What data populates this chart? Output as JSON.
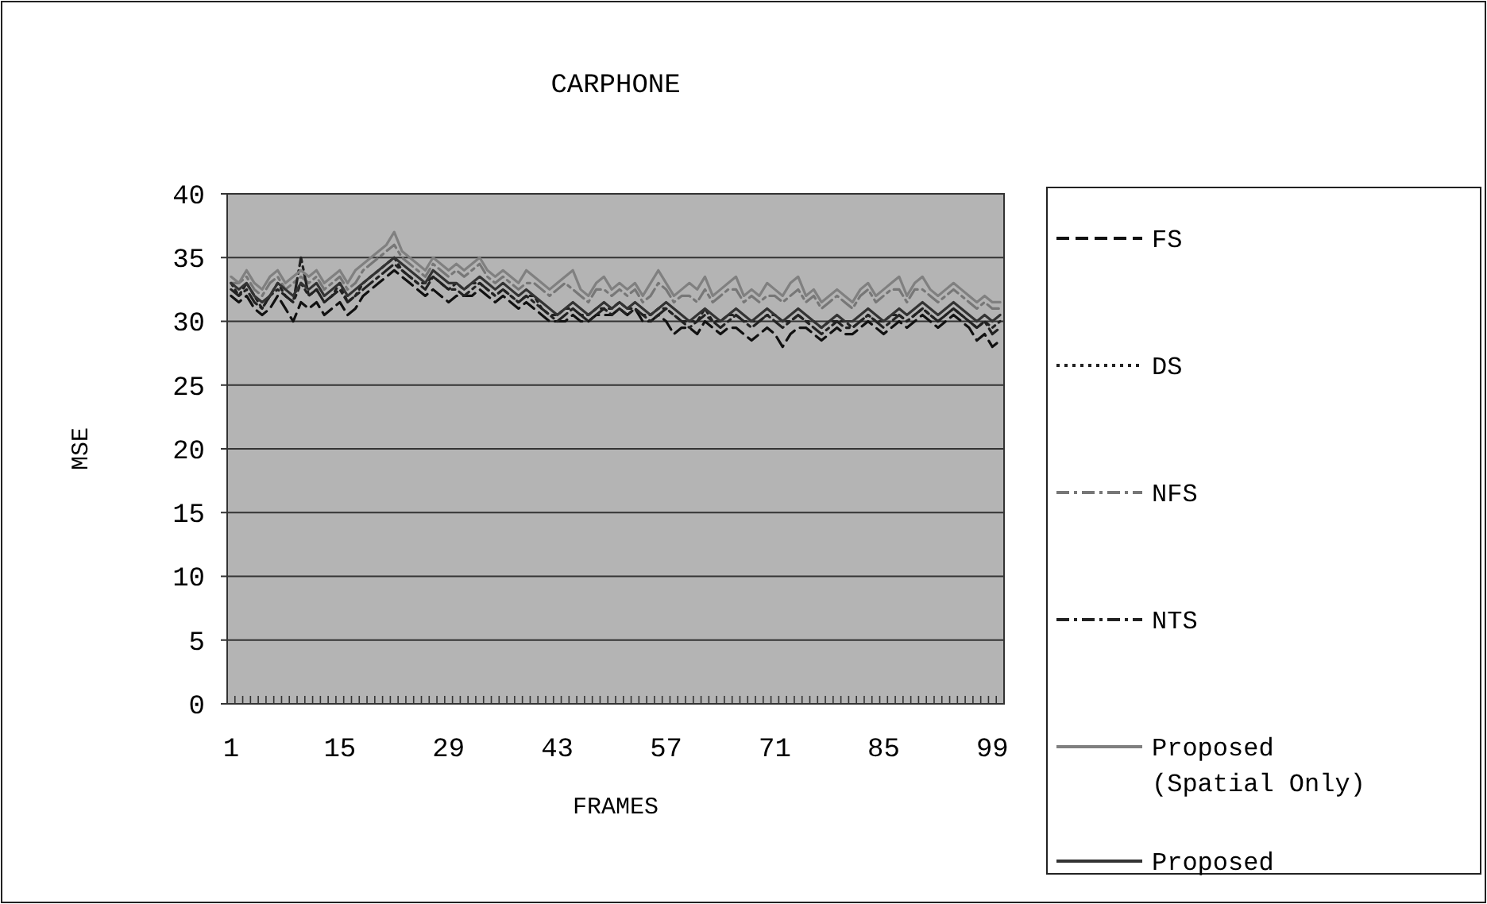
{
  "chart_data": {
    "type": "line",
    "title": "CARPHONE",
    "xlabel": "FRAMES",
    "ylabel": "MSE",
    "categories": [
      "1",
      null,
      null,
      null,
      null,
      null,
      null,
      null,
      null,
      null,
      null,
      null,
      null,
      null,
      "15",
      null,
      null,
      null,
      null,
      null,
      null,
      null,
      null,
      null,
      null,
      null,
      null,
      null,
      "29",
      null,
      null,
      null,
      null,
      null,
      null,
      null,
      null,
      null,
      null,
      null,
      null,
      null,
      "43",
      null,
      null,
      null,
      null,
      null,
      null,
      null,
      null,
      null,
      null,
      null,
      null,
      null,
      "57",
      null,
      null,
      null,
      null,
      null,
      null,
      null,
      null,
      null,
      null,
      null,
      null,
      null,
      "71",
      null,
      null,
      null,
      null,
      null,
      null,
      null,
      null,
      null,
      null,
      null,
      null,
      null,
      "85",
      null,
      null,
      null,
      null,
      null,
      null,
      null,
      null,
      null,
      null,
      null,
      null,
      null,
      "99",
      null
    ],
    "ylim": [
      0,
      40
    ],
    "yticks": [
      0,
      5,
      10,
      15,
      20,
      25,
      30,
      35,
      40
    ],
    "grid": "y",
    "legend": "right",
    "series": [
      {
        "name": "FS",
        "color": "#111111",
        "line_style": "dashed",
        "values": [
          32,
          31.5,
          32,
          31,
          30.5,
          31,
          32,
          31,
          30,
          31.5,
          31,
          31.5,
          30.5,
          31,
          31.5,
          30.5,
          31,
          32,
          32.5,
          33,
          33.5,
          34,
          33.5,
          33,
          32.5,
          32,
          32.5,
          32,
          31.5,
          32,
          32,
          32,
          32.5,
          32,
          31.5,
          32,
          31.5,
          31,
          31.5,
          31,
          30.5,
          30,
          30,
          30,
          30.5,
          30,
          30,
          30.5,
          30.5,
          30.5,
          31,
          30.5,
          31,
          30,
          30,
          30.5,
          30,
          29,
          29.5,
          29.5,
          29,
          30,
          29.5,
          29,
          29.5,
          29.5,
          29,
          28.5,
          29,
          29.5,
          29,
          28,
          29,
          29.5,
          29.5,
          29,
          28.5,
          29,
          29.5,
          29,
          29,
          29.5,
          30,
          29.5,
          29,
          29.5,
          30,
          29.5,
          30,
          30.5,
          30,
          29.5,
          30,
          30.5,
          30,
          29.5,
          28.5,
          29,
          28,
          28.5
        ]
      },
      {
        "name": "DS",
        "color": "#222222",
        "line_style": "dotted",
        "values": [
          33,
          32,
          33,
          32,
          31,
          32,
          33,
          32,
          31.5,
          33,
          32,
          32.5,
          31.5,
          32,
          33,
          31.5,
          32,
          33,
          33.5,
          34,
          34.5,
          35,
          34,
          33.5,
          33,
          33,
          33.5,
          33,
          32.5,
          33,
          32.5,
          33,
          33,
          32.5,
          32,
          32.5,
          32,
          31.5,
          32,
          32,
          31,
          30.5,
          30.5,
          31,
          31,
          30.5,
          30.5,
          31,
          31,
          31,
          31.5,
          31,
          31,
          30.5,
          30.5,
          31,
          31,
          30.5,
          30,
          30,
          30,
          31,
          30,
          30,
          30.5,
          30.5,
          30,
          30,
          30,
          30.5,
          30.5,
          30,
          30,
          30.5,
          30,
          30,
          29.5,
          30,
          30,
          30,
          29.5,
          30,
          30.5,
          30,
          30,
          30.5,
          30.5,
          30,
          30.5,
          31,
          30.5,
          30,
          30.5,
          31,
          30.5,
          30,
          29.5,
          30,
          29.5,
          30
        ]
      },
      {
        "name": "NFS",
        "color": "#777777",
        "line_style": "dashdot",
        "values": [
          33,
          33,
          33.5,
          32.5,
          32,
          33,
          33.5,
          32.5,
          33,
          33.5,
          33,
          33.5,
          32.5,
          33,
          33.5,
          32.5,
          33,
          34,
          34.5,
          35,
          35.5,
          36,
          35,
          34.5,
          34,
          33.5,
          34.5,
          34,
          33.5,
          34,
          33.5,
          34,
          34.5,
          33.5,
          33,
          33.5,
          33,
          32.5,
          33,
          33,
          32.5,
          32,
          32.5,
          33,
          32.5,
          32,
          31.5,
          32.5,
          32.5,
          32,
          32.5,
          32,
          32.5,
          31.5,
          32,
          33,
          32.5,
          31.5,
          32,
          32,
          31.5,
          32.5,
          31.5,
          32,
          32.5,
          32.5,
          31.5,
          32,
          31.5,
          32,
          32,
          31.5,
          32,
          32.5,
          31.5,
          32,
          31,
          31.5,
          32,
          31.5,
          31,
          32,
          32.5,
          31.5,
          32,
          32.5,
          32.5,
          31.5,
          32.5,
          32.5,
          32,
          31.5,
          32,
          32.5,
          32,
          31.5,
          31,
          31.5,
          31,
          31
        ]
      },
      {
        "name": "NTS",
        "color": "#222222",
        "line_style": "dashdot",
        "values": [
          32.5,
          32,
          32.5,
          31.5,
          31,
          32,
          32.5,
          32,
          31.5,
          35,
          32,
          32.5,
          31.5,
          32,
          32.5,
          31.5,
          32,
          32.5,
          33,
          33.5,
          34,
          34.5,
          34,
          33.5,
          33,
          32.5,
          33.5,
          33,
          32.5,
          32.5,
          32,
          32.5,
          33,
          32.5,
          32,
          32.5,
          32,
          31.5,
          32,
          31.5,
          31,
          30.5,
          30,
          30.5,
          31,
          30.5,
          30,
          30.5,
          31,
          30.5,
          31,
          30.5,
          31,
          30.5,
          30,
          30.5,
          31,
          30.5,
          30,
          29.5,
          30,
          30.5,
          30,
          29.5,
          30,
          30.5,
          30,
          29.5,
          30,
          30.5,
          30,
          29.5,
          30,
          30.5,
          30,
          29.5,
          29,
          29.5,
          30,
          29.5,
          29.5,
          30,
          30.5,
          30,
          29.5,
          30,
          30.5,
          30,
          30.5,
          31,
          30.5,
          30,
          30.5,
          31,
          30.5,
          30,
          29.5,
          30,
          29,
          29.5
        ]
      },
      {
        "name": "Proposed (Spatial Only)",
        "color": "#808080",
        "line_style": "solid",
        "values": [
          33.5,
          33,
          34,
          33,
          32.5,
          33.5,
          34,
          33,
          33.5,
          34,
          33.5,
          34,
          33,
          33.5,
          34,
          33,
          34,
          34.5,
          35,
          35.5,
          36,
          37,
          35.5,
          35,
          34.5,
          34,
          35,
          34.5,
          34,
          34.5,
          34,
          34.5,
          35,
          34,
          33.5,
          34,
          33.5,
          33,
          34,
          33.5,
          33,
          32.5,
          33,
          33.5,
          34,
          32.5,
          32,
          33,
          33.5,
          32.5,
          33,
          32.5,
          33,
          32,
          33,
          34,
          33,
          32,
          32.5,
          33,
          32.5,
          33.5,
          32,
          32.5,
          33,
          33.5,
          32,
          32.5,
          32,
          33,
          32.5,
          32,
          33,
          33.5,
          32,
          32.5,
          31.5,
          32,
          32.5,
          32,
          31.5,
          32.5,
          33,
          32,
          32.5,
          33,
          33.5,
          32,
          33,
          33.5,
          32.5,
          32,
          32.5,
          33,
          32.5,
          32,
          31.5,
          32,
          31.5,
          31.5
        ]
      },
      {
        "name": "Proposed",
        "color": "#333333",
        "line_style": "solid",
        "values": [
          33,
          32.5,
          33,
          32,
          31.5,
          32,
          33,
          32.5,
          32,
          33,
          32.5,
          33,
          32,
          32.5,
          33,
          32,
          32.5,
          33,
          33.5,
          34,
          34.5,
          35,
          34.5,
          34,
          33.5,
          33,
          34,
          33.5,
          33,
          33,
          32.5,
          33,
          33.5,
          33,
          32.5,
          33,
          32.5,
          32,
          32.5,
          32,
          31.5,
          31,
          30.5,
          31,
          31.5,
          31,
          30.5,
          31,
          31.5,
          31,
          31.5,
          31,
          31.5,
          31,
          30.5,
          31,
          31.5,
          31,
          30.5,
          30,
          30.5,
          31,
          30.5,
          30,
          30.5,
          31,
          30.5,
          30,
          30.5,
          31,
          30.5,
          30,
          30.5,
          31,
          30.5,
          30,
          29.5,
          30,
          30.5,
          30,
          30,
          30.5,
          31,
          30.5,
          30,
          30.5,
          31,
          30.5,
          31,
          31.5,
          31,
          30.5,
          31,
          31.5,
          31,
          30.5,
          30,
          30.5,
          30,
          30.5
        ]
      }
    ]
  }
}
